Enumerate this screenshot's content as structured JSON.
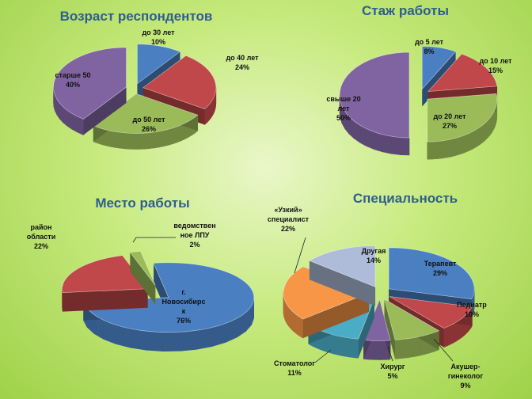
{
  "chart_data": [
    {
      "type": "pie",
      "title": "Возраст респондентов",
      "slices": [
        {
          "label_lines": [
            "до 30 лет",
            "10%"
          ],
          "value": 10,
          "color": "#4a7fc1"
        },
        {
          "label_lines": [
            "до 40 лет",
            "24%"
          ],
          "value": 24,
          "color": "#c0474a"
        },
        {
          "label_lines": [
            "до 50 лет",
            "26%"
          ],
          "value": 26,
          "color": "#9bbb59"
        },
        {
          "label_lines": [
            "старше 50",
            "40%"
          ],
          "value": 40,
          "color": "#8064a2"
        }
      ]
    },
    {
      "type": "pie",
      "title": "Стаж работы",
      "slices": [
        {
          "label_lines": [
            "до 5 лет",
            "8%"
          ],
          "value": 8,
          "color": "#4a7fc1"
        },
        {
          "label_lines": [
            "до 10 лет",
            "15%"
          ],
          "value": 15,
          "color": "#c0474a"
        },
        {
          "label_lines": [
            "до 20 лет",
            "27%"
          ],
          "value": 27,
          "color": "#9bbb59"
        },
        {
          "label_lines": [
            "свыше 20",
            "лет",
            "50%"
          ],
          "value": 50,
          "color": "#8064a2"
        }
      ]
    },
    {
      "type": "pie",
      "title": "Место работы",
      "slices": [
        {
          "label_lines": [
            "г.",
            "Новосибирс",
            "к",
            "76%"
          ],
          "value": 76,
          "color": "#4a7fc1"
        },
        {
          "label_lines": [
            "район",
            "области",
            "22%"
          ],
          "value": 22,
          "color": "#c0474a"
        },
        {
          "label_lines": [
            "ведомствен",
            "ное ЛПУ",
            "2%"
          ],
          "value": 2,
          "color": "#9bbb59"
        }
      ]
    },
    {
      "type": "pie",
      "title": "Специальность",
      "slices": [
        {
          "label_lines": [
            "Терапевт",
            "29%"
          ],
          "value": 29,
          "color": "#4a7fc1"
        },
        {
          "label_lines": [
            "Педиатр",
            "10%"
          ],
          "value": 10,
          "color": "#c0474a"
        },
        {
          "label_lines": [
            "Акушер-",
            "гинеколог",
            "9%"
          ],
          "value": 9,
          "color": "#9bbb59"
        },
        {
          "label_lines": [
            "Хирург",
            "5%"
          ],
          "value": 5,
          "color": "#8064a2"
        },
        {
          "label_lines": [
            "Стоматолог",
            "11%"
          ],
          "value": 11,
          "color": "#4bacc6"
        },
        {
          "label_lines": [
            "«Узкий»",
            "специалист",
            "22%"
          ],
          "value": 22,
          "color": "#f79646"
        },
        {
          "label_lines": [
            "Другая",
            "14%"
          ],
          "value": 14,
          "color": "#aebcd9"
        }
      ]
    }
  ]
}
